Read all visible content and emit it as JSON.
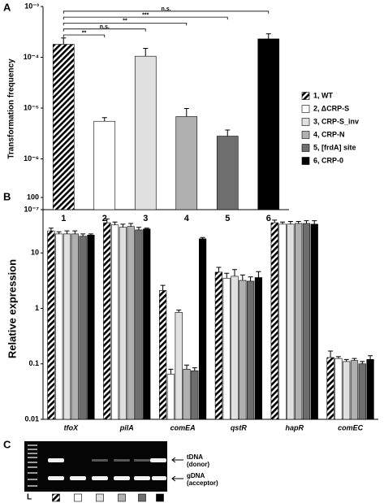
{
  "chart_data": [
    {
      "type": "bar",
      "label": "A",
      "ylabel": "Transformation frequency",
      "log_scale": true,
      "categories": [
        "1",
        "2",
        "3",
        "4",
        "5",
        "6"
      ],
      "values": [
        0.00018,
        5.5e-06,
        0.000105,
        6.8e-06,
        2.8e-06,
        0.00023
      ],
      "errors": [
        6e-05,
        1e-06,
        4.5e-05,
        3e-06,
        9e-07,
        6e-05
      ],
      "colors": [
        "hatch",
        "#ffffff",
        "#e0e0e0",
        "#b0b0b0",
        "#6e6e6e",
        "#000000"
      ],
      "legend": [
        "1, WT",
        "2, ΔCRP-S",
        "3, CRP-S_inv",
        "4, CRP-N",
        "5, [frdA] site",
        "6, CRP-0"
      ],
      "significance": [
        "**",
        "n.s.",
        "**",
        "***",
        "n.s."
      ],
      "ylim": [
        1e-07,
        0.001
      ],
      "yticks": [
        {
          "value": 1e-07,
          "label": "10⁻⁷"
        },
        {
          "value": 1e-06,
          "label": "10⁻⁶"
        },
        {
          "value": 1e-05,
          "label": "10⁻⁵"
        },
        {
          "value": 0.0001,
          "label": "10⁻⁴"
        },
        {
          "value": 0.001,
          "label": "10⁻³"
        }
      ]
    },
    {
      "type": "grouped_bar",
      "label": "B",
      "ylabel": "Relative expression",
      "log_scale": true,
      "categories": [
        "tfoX",
        "pilA",
        "comEA",
        "qstR",
        "hapR",
        "comEC"
      ],
      "series": [
        {
          "color": "hatch",
          "values": [
            25,
            35,
            2.1,
            4.5,
            35,
            0.13
          ],
          "errors": [
            3,
            6,
            0.5,
            1,
            4,
            0.04
          ]
        },
        {
          "color": "#ffffff",
          "values": [
            22,
            32,
            0.065,
            3.5,
            33,
            0.125
          ],
          "errors": [
            2,
            4,
            0.015,
            0.8,
            3,
            0.01
          ]
        },
        {
          "color": "#e0e0e0",
          "values": [
            22,
            29,
            0.85,
            3.8,
            33,
            0.11
          ],
          "errors": [
            3,
            4,
            0.08,
            1.2,
            4,
            0.01
          ]
        },
        {
          "color": "#b0b0b0",
          "values": [
            22,
            30,
            0.08,
            3.2,
            34,
            0.115
          ],
          "errors": [
            3,
            4,
            0.015,
            0.8,
            3,
            0.01
          ]
        },
        {
          "color": "#6e6e6e",
          "values": [
            20,
            26,
            0.075,
            3.1,
            34,
            0.1
          ],
          "errors": [
            2,
            3,
            0.01,
            0.6,
            4,
            0.01
          ]
        },
        {
          "color": "#000000",
          "values": [
            21,
            27,
            18,
            3.6,
            33,
            0.12
          ],
          "errors": [
            1,
            1,
            1,
            1,
            5,
            0.02
          ]
        }
      ],
      "ylim": [
        0.01,
        100
      ],
      "yticks": [
        0.01,
        0.1,
        1,
        10,
        100
      ]
    }
  ],
  "gel": {
    "label": "C",
    "lane_label": "L",
    "bands": [
      [
        "tDNA",
        "(donor)"
      ],
      [
        "gDNA",
        "(acceptor)"
      ]
    ]
  }
}
